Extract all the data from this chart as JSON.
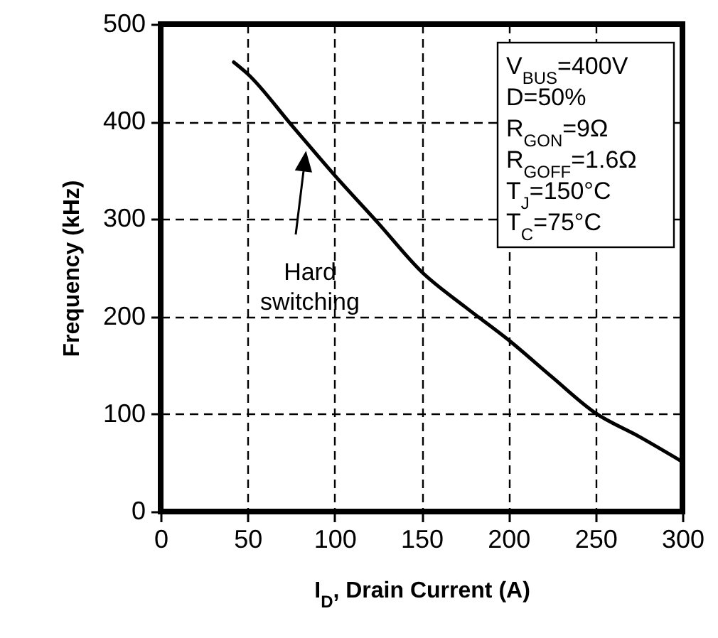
{
  "chart_data": {
    "type": "line",
    "xlabel": "I$_{D}$, Drain Current (A)",
    "ylabel": "Frequency (kHz)",
    "x": [
      42,
      50,
      75,
      100,
      125,
      150,
      175,
      200,
      225,
      250,
      275,
      300
    ],
    "values": [
      461,
      449,
      397,
      345,
      296,
      246,
      210,
      176,
      138,
      101,
      77,
      51
    ],
    "color": "#000000",
    "xlim": [
      0,
      300
    ],
    "xticks": [
      0,
      50,
      100,
      150,
      200,
      250,
      300
    ],
    "ylim": [
      0,
      500
    ],
    "yticks": [
      0,
      100,
      200,
      300,
      400,
      500
    ],
    "grid": true,
    "annotations": [
      "Hard switching",
      "V$_{BUS}$=400V",
      "D=50%",
      "R$_{GON}$=9Ω",
      "R$_{GOFF}$=1.6Ω",
      "T$_{J}$=150°C",
      "T$_{C}$=75°C"
    ]
  }
}
